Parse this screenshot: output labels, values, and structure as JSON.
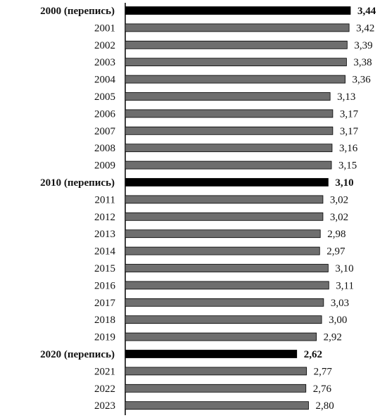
{
  "chart_data": {
    "type": "bar",
    "orientation": "horizontal",
    "title": "",
    "xlabel": "",
    "ylabel": "",
    "grid": false,
    "categories": [
      "2000 (перепись)",
      "2001",
      "2002",
      "2003",
      "2004",
      "2005",
      "2006",
      "2007",
      "2008",
      "2009",
      "2010 (перепись)",
      "2011",
      "2012",
      "2013",
      "2014",
      "2015",
      "2016",
      "2017",
      "2018",
      "2019",
      "2020 (перепись)",
      "2021",
      "2022",
      "2023"
    ],
    "values": [
      3.44,
      3.42,
      3.39,
      3.38,
      3.36,
      3.13,
      3.17,
      3.17,
      3.16,
      3.15,
      3.1,
      3.02,
      3.02,
      2.98,
      2.97,
      3.1,
      3.11,
      3.03,
      3.0,
      2.92,
      2.62,
      2.77,
      2.76,
      2.8
    ],
    "value_labels": [
      "3,44",
      "3,42",
      "3,39",
      "3,38",
      "3,36",
      "3,13",
      "3,17",
      "3,17",
      "3,16",
      "3,15",
      "3,10",
      "3,02",
      "3,02",
      "2,98",
      "2,97",
      "3,10",
      "3,11",
      "3,03",
      "3,00",
      "2,92",
      "2,62",
      "2,77",
      "2,76",
      "2,80"
    ],
    "highlighted": [
      true,
      false,
      false,
      false,
      false,
      false,
      false,
      false,
      false,
      false,
      true,
      false,
      false,
      false,
      false,
      false,
      false,
      false,
      false,
      false,
      true,
      false,
      false,
      false
    ],
    "colors": {
      "highlight": "#000000",
      "normal": "#6e6e6e",
      "axis": "#000000"
    }
  }
}
